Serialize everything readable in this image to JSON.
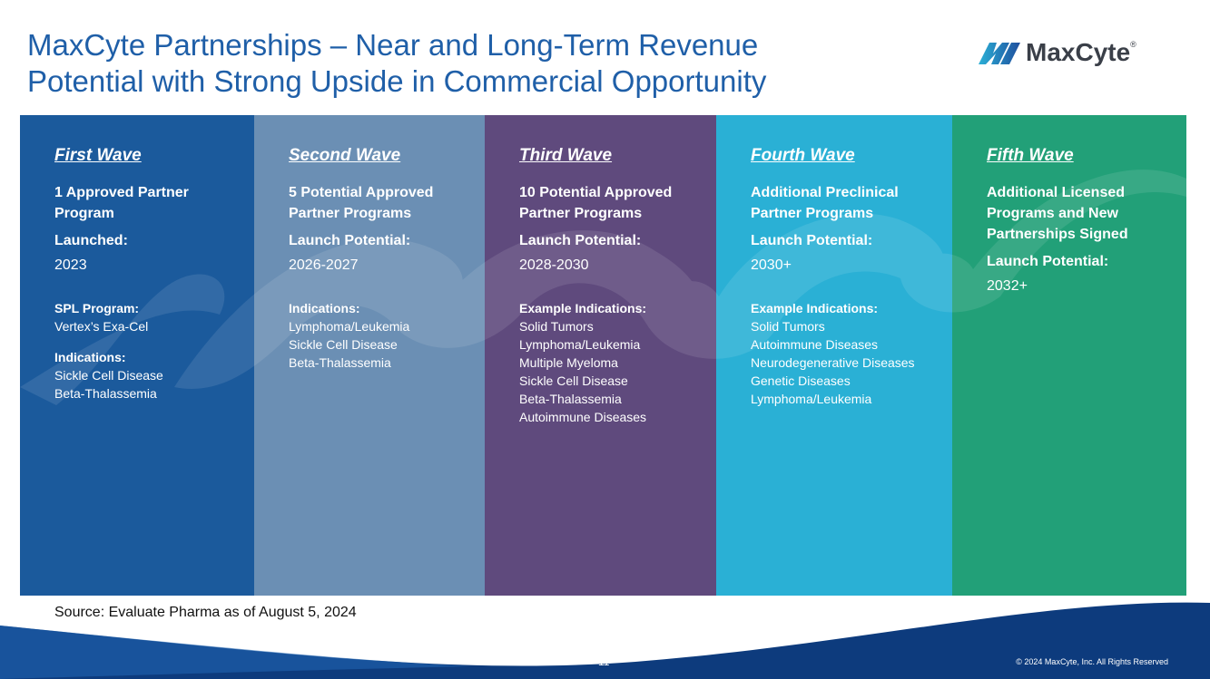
{
  "header": {
    "title_lines": [
      "MaxCyte Partnerships – Near and Long-Term Revenue",
      "Potential with Strong Upside in Commercial Opportunity"
    ],
    "logo": {
      "name": "MaxCyte",
      "mark": "®"
    }
  },
  "columns": [
    {
      "heading": "First Wave",
      "program": [
        "1 Approved Partner",
        "Program"
      ],
      "launch_label": "Launched:",
      "launch_value": "2023",
      "sections": [
        {
          "label": "SPL Program:",
          "items": [
            "Vertex’s Exa-Cel"
          ]
        },
        {
          "label": "Indications:",
          "items": [
            "Sickle Cell Disease",
            "Beta-Thalassemia"
          ]
        }
      ]
    },
    {
      "heading": "Second Wave",
      "program": [
        "5 Potential Approved",
        "Partner Programs"
      ],
      "launch_label": "Launch Potential:",
      "launch_value": "2026-2027",
      "sections": [
        {
          "label": "Indications:",
          "items": [
            "Lymphoma/Leukemia",
            "Sickle Cell Disease",
            "Beta-Thalassemia"
          ]
        }
      ]
    },
    {
      "heading": "Third Wave",
      "program": [
        "10 Potential Approved",
        "Partner Programs"
      ],
      "launch_label": "Launch Potential:",
      "launch_value": "2028-2030",
      "sections": [
        {
          "label": "Example Indications:",
          "items": [
            "Solid Tumors",
            "Lymphoma/Leukemia",
            "Multiple Myeloma",
            "Sickle Cell Disease",
            "Beta-Thalassemia",
            "Autoimmune Diseases"
          ]
        }
      ]
    },
    {
      "heading": "Fourth Wave",
      "program": [
        "Additional Preclinical",
        "Partner Programs"
      ],
      "launch_label": "Launch Potential:",
      "launch_value": "2030+",
      "sections": [
        {
          "label": "Example Indications:",
          "items": [
            "Solid Tumors",
            "Autoimmune Diseases",
            "Neurodegenerative Diseases",
            "Genetic Diseases",
            "Lymphoma/Leukemia"
          ]
        }
      ]
    },
    {
      "heading": "Fifth Wave",
      "program": [
        "Additional Licensed",
        "Programs and New",
        "Partnerships Signed"
      ],
      "launch_label": "Launch Potential:",
      "launch_value": "2032+",
      "sections": []
    }
  ],
  "footer": {
    "source": "Source: Evaluate Pharma as of August 5, 2024",
    "page": "11",
    "copyright": "© 2024 MaxCyte, Inc. All Rights Reserved"
  }
}
